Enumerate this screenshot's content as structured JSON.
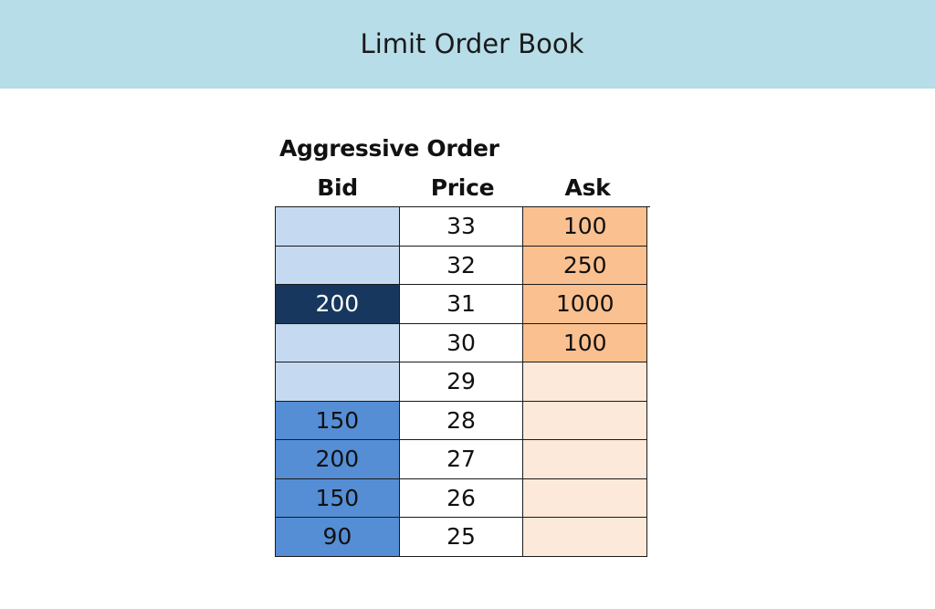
{
  "header": {
    "title": "Limit Order Book"
  },
  "book": {
    "caption": "Aggressive Order",
    "columns": [
      "Bid",
      "Price",
      "Ask"
    ],
    "rows": [
      {
        "bid": "",
        "price": "33",
        "ask": "100",
        "bid_state": "empty",
        "ask_state": "filled"
      },
      {
        "bid": "",
        "price": "32",
        "ask": "250",
        "bid_state": "empty",
        "ask_state": "filled"
      },
      {
        "bid": "200",
        "price": "31",
        "ask": "1000",
        "bid_state": "aggressive",
        "ask_state": "filled"
      },
      {
        "bid": "",
        "price": "30",
        "ask": "100",
        "bid_state": "empty",
        "ask_state": "filled"
      },
      {
        "bid": "",
        "price": "29",
        "ask": "",
        "bid_state": "empty",
        "ask_state": "empty"
      },
      {
        "bid": "150",
        "price": "28",
        "ask": "",
        "bid_state": "filled",
        "ask_state": "empty"
      },
      {
        "bid": "200",
        "price": "27",
        "ask": "",
        "bid_state": "filled",
        "ask_state": "empty"
      },
      {
        "bid": "150",
        "price": "26",
        "ask": "",
        "bid_state": "filled",
        "ask_state": "empty"
      },
      {
        "bid": "90",
        "price": "25",
        "ask": "",
        "bid_state": "filled",
        "ask_state": "empty"
      }
    ]
  },
  "colors": {
    "header_bg": "#b7dde8",
    "bid_empty": "#c5d9f1",
    "bid_filled": "#558ed5",
    "bid_aggressive": "#17375e",
    "ask_filled": "#fac090",
    "ask_empty": "#fde9d9"
  }
}
